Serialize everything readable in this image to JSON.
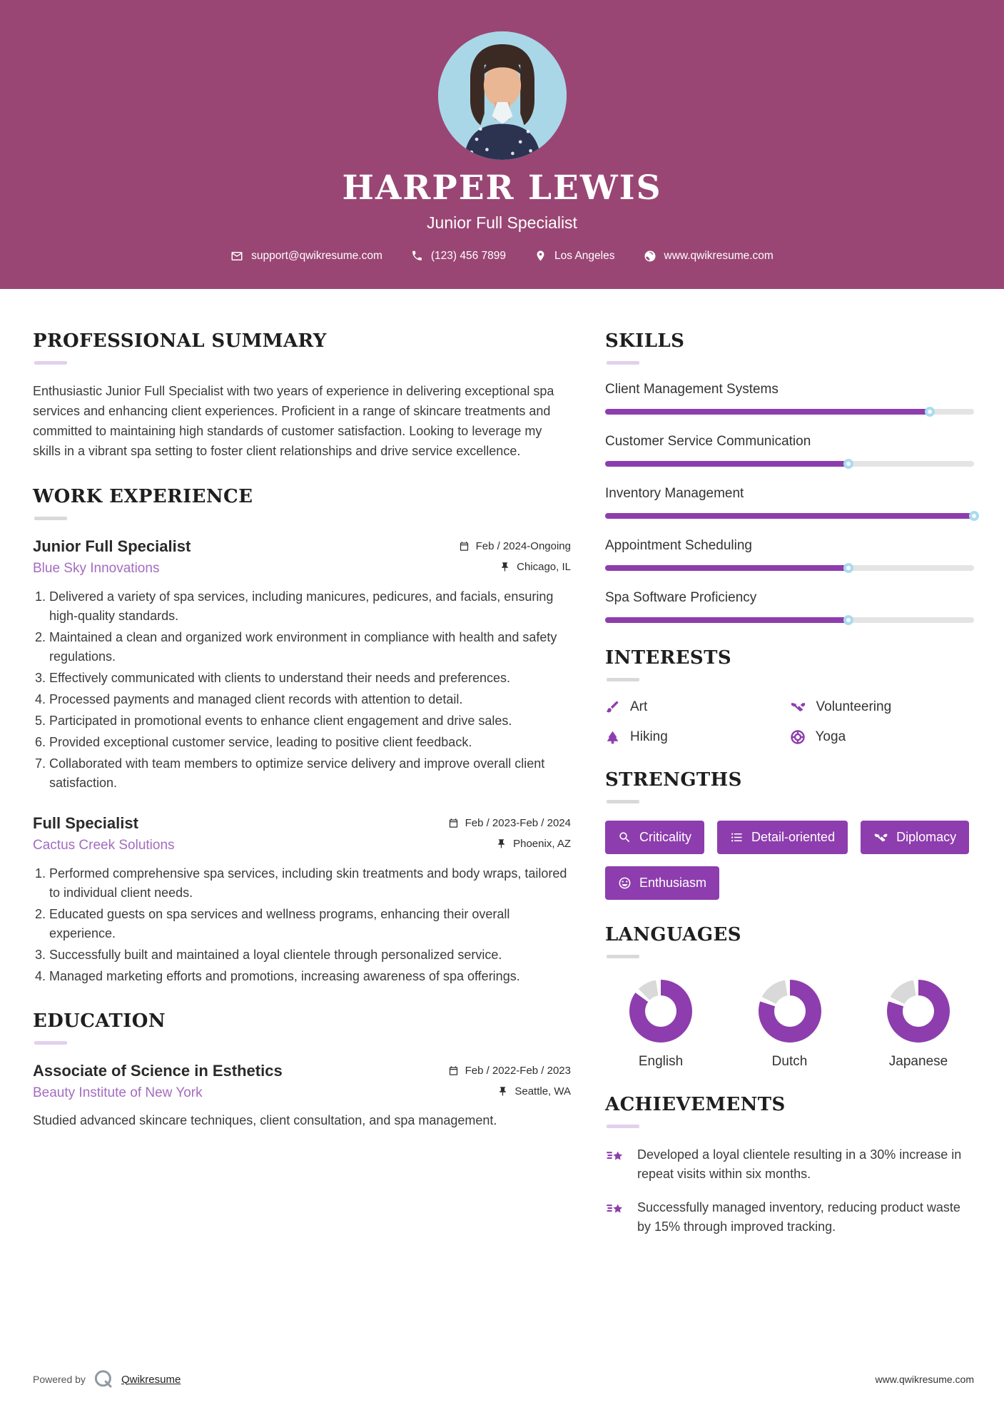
{
  "colors": {
    "header_bg": "#9a4674",
    "accent": "#8d3dad",
    "company_purple": "#a46cbf",
    "track_gray": "#e4e4e4",
    "donut_gray": "#d9d9d9",
    "thumb_ring": "#a9dcf0"
  },
  "header": {
    "name": "HARPER LEWIS",
    "title": "Junior Full Specialist",
    "contacts": [
      {
        "icon": "email-icon",
        "text": "support@qwikresume.com"
      },
      {
        "icon": "phone-icon",
        "text": "(123) 456 7899"
      },
      {
        "icon": "location-icon",
        "text": "Los Angeles"
      },
      {
        "icon": "website-icon",
        "text": "www.qwikresume.com"
      }
    ]
  },
  "summary": {
    "heading": "PROFESSIONAL SUMMARY",
    "text": "Enthusiastic Junior Full Specialist with two years of experience in delivering exceptional spa services and enhancing client experiences. Proficient in a range of skincare treatments and committed to maintaining high standards of customer satisfaction. Looking to leverage my skills in a vibrant spa setting to foster client relationships and drive service excellence."
  },
  "work": {
    "heading": "WORK EXPERIENCE",
    "jobs": [
      {
        "title": "Junior Full Specialist",
        "company": "Blue Sky Innovations",
        "dates": "Feb / 2024-Ongoing",
        "location": "Chicago, IL",
        "bullets": [
          "Delivered a variety of spa services, including manicures, pedicures, and facials, ensuring high-quality standards.",
          "Maintained a clean and organized work environment in compliance with health and safety regulations.",
          "Effectively communicated with clients to understand their needs and preferences.",
          "Processed payments and managed client records with attention to detail.",
          "Participated in promotional events to enhance client engagement and drive sales.",
          "Provided exceptional customer service, leading to positive client feedback.",
          "Collaborated with team members to optimize service delivery and improve overall client satisfaction."
        ]
      },
      {
        "title": "Full Specialist",
        "company": "Cactus Creek Solutions",
        "dates": "Feb / 2023-Feb / 2024",
        "location": "Phoenix, AZ",
        "bullets": [
          "Performed comprehensive spa services, including skin treatments and body wraps, tailored to individual client needs.",
          "Educated guests on spa services and wellness programs, enhancing their overall experience.",
          "Successfully built and maintained a loyal clientele through personalized service.",
          "Managed marketing efforts and promotions, increasing awareness of spa offerings."
        ]
      }
    ]
  },
  "education": {
    "heading": "EDUCATION",
    "degree": "Associate of Science in Esthetics",
    "school": "Beauty Institute of New York",
    "dates": "Feb / 2022-Feb / 2023",
    "location": "Seattle, WA",
    "description": "Studied advanced skincare techniques, client consultation, and spa management."
  },
  "skills": {
    "heading": "SKILLS",
    "items": [
      {
        "label": "Client Management Systems",
        "percent": 88
      },
      {
        "label": "Customer Service Communication",
        "percent": 66
      },
      {
        "label": "Inventory Management",
        "percent": 100
      },
      {
        "label": "Appointment Scheduling",
        "percent": 66
      },
      {
        "label": "Spa Software Proficiency",
        "percent": 66
      }
    ]
  },
  "interests": {
    "heading": "INTERESTS",
    "items": [
      {
        "icon": "paintbrush-icon",
        "label": "Art"
      },
      {
        "icon": "handshake-icon",
        "label": "Volunteering"
      },
      {
        "icon": "tree-icon",
        "label": "Hiking"
      },
      {
        "icon": "wheel-icon",
        "label": "Yoga"
      }
    ]
  },
  "strengths": {
    "heading": "STRENGTHS",
    "items": [
      {
        "icon": "search-icon",
        "label": "Criticality"
      },
      {
        "icon": "list-icon",
        "label": "Detail-oriented"
      },
      {
        "icon": "handshake-icon",
        "label": "Diplomacy"
      },
      {
        "icon": "smiley-icon",
        "label": "Enthusiasm"
      }
    ]
  },
  "languages": {
    "heading": "LANGUAGES",
    "items": [
      {
        "label": "English",
        "percent": 85
      },
      {
        "label": "Dutch",
        "percent": 80
      },
      {
        "label": "Japanese",
        "percent": 80
      }
    ]
  },
  "achievements": {
    "heading": "ACHIEVEMENTS",
    "items": [
      "Developed a loyal clientele resulting in a 30% increase in repeat visits within six months.",
      "Successfully managed inventory, reducing product waste by 15% through improved tracking."
    ]
  },
  "footer": {
    "powered_by": "Powered by",
    "brand": "Qwikresume",
    "site": "www.qwikresume.com"
  }
}
